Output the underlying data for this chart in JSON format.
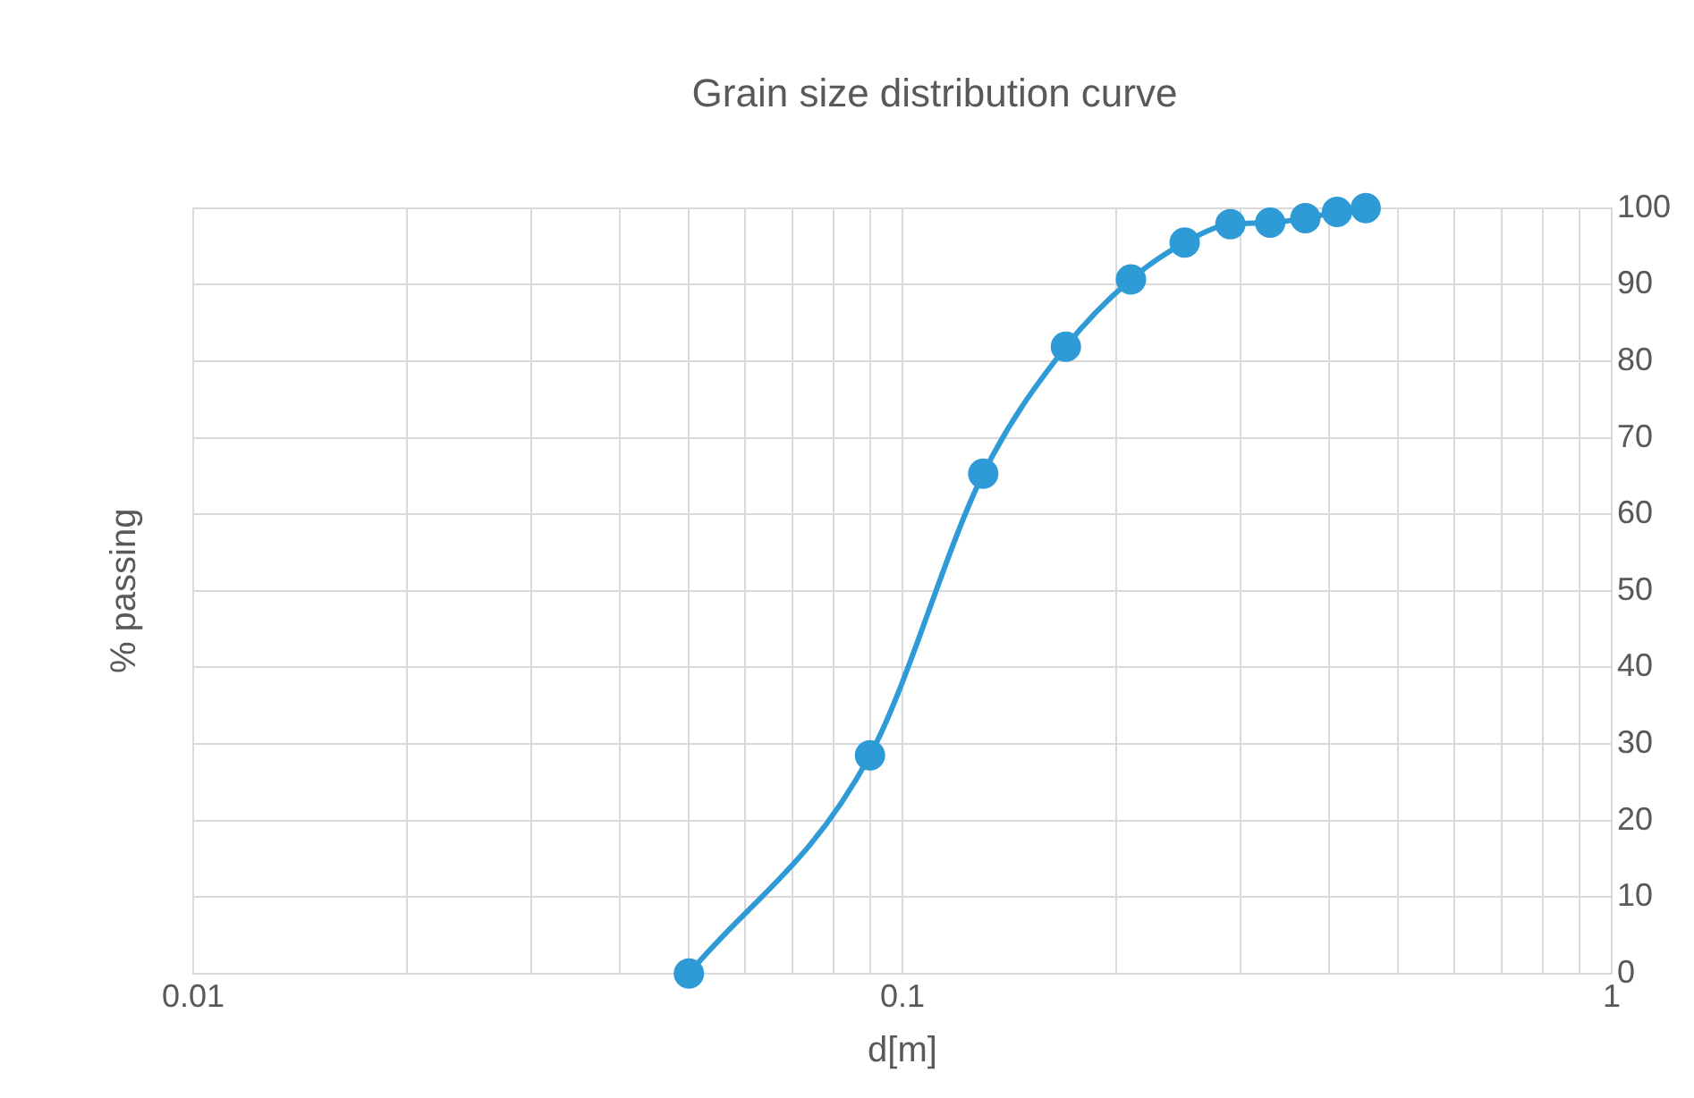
{
  "chart_data": {
    "type": "line",
    "title": "Grain size distribution curve",
    "xlabel": "d[m]",
    "ylabel": "% passing",
    "log": "x",
    "xlim": [
      0.01,
      1
    ],
    "xticks": [
      0.01,
      {
        "value": 0.02,
        "label": null
      },
      {
        "value": 0.03,
        "label": null
      },
      {
        "value": 0.04,
        "label": null
      },
      {
        "value": 0.05,
        "label": null
      },
      {
        "value": 0.06,
        "label": null
      },
      {
        "value": 0.07,
        "label": null
      },
      {
        "value": 0.08,
        "label": null
      },
      {
        "value": 0.09,
        "label": null
      },
      0.1,
      {
        "value": 0.2,
        "label": null
      },
      {
        "value": 0.3,
        "label": null
      },
      {
        "value": 0.4,
        "label": null
      },
      {
        "value": 0.5,
        "label": null
      },
      {
        "value": 0.6,
        "label": null
      },
      {
        "value": 0.7,
        "label": null
      },
      {
        "value": 0.8,
        "label": null
      },
      {
        "value": 0.9,
        "label": null
      },
      1
    ],
    "ylim": [
      0,
      100
    ],
    "yticks": [
      0,
      10,
      20,
      30,
      40,
      50,
      60,
      70,
      80,
      90,
      100
    ],
    "grid": true,
    "legend": false,
    "marker": "circle",
    "line_style": "solid",
    "series": [
      {
        "color": "#2e9bd6",
        "x": [
          0.05,
          0.09,
          0.13,
          0.17,
          0.21,
          0.25,
          0.29,
          0.33,
          0.37,
          0.41,
          0.45
        ],
        "values": [
          0,
          28.5,
          65.3,
          81.9,
          90.7,
          95.5,
          97.9,
          98.1,
          98.7,
          99.5,
          100
        ]
      }
    ]
  }
}
